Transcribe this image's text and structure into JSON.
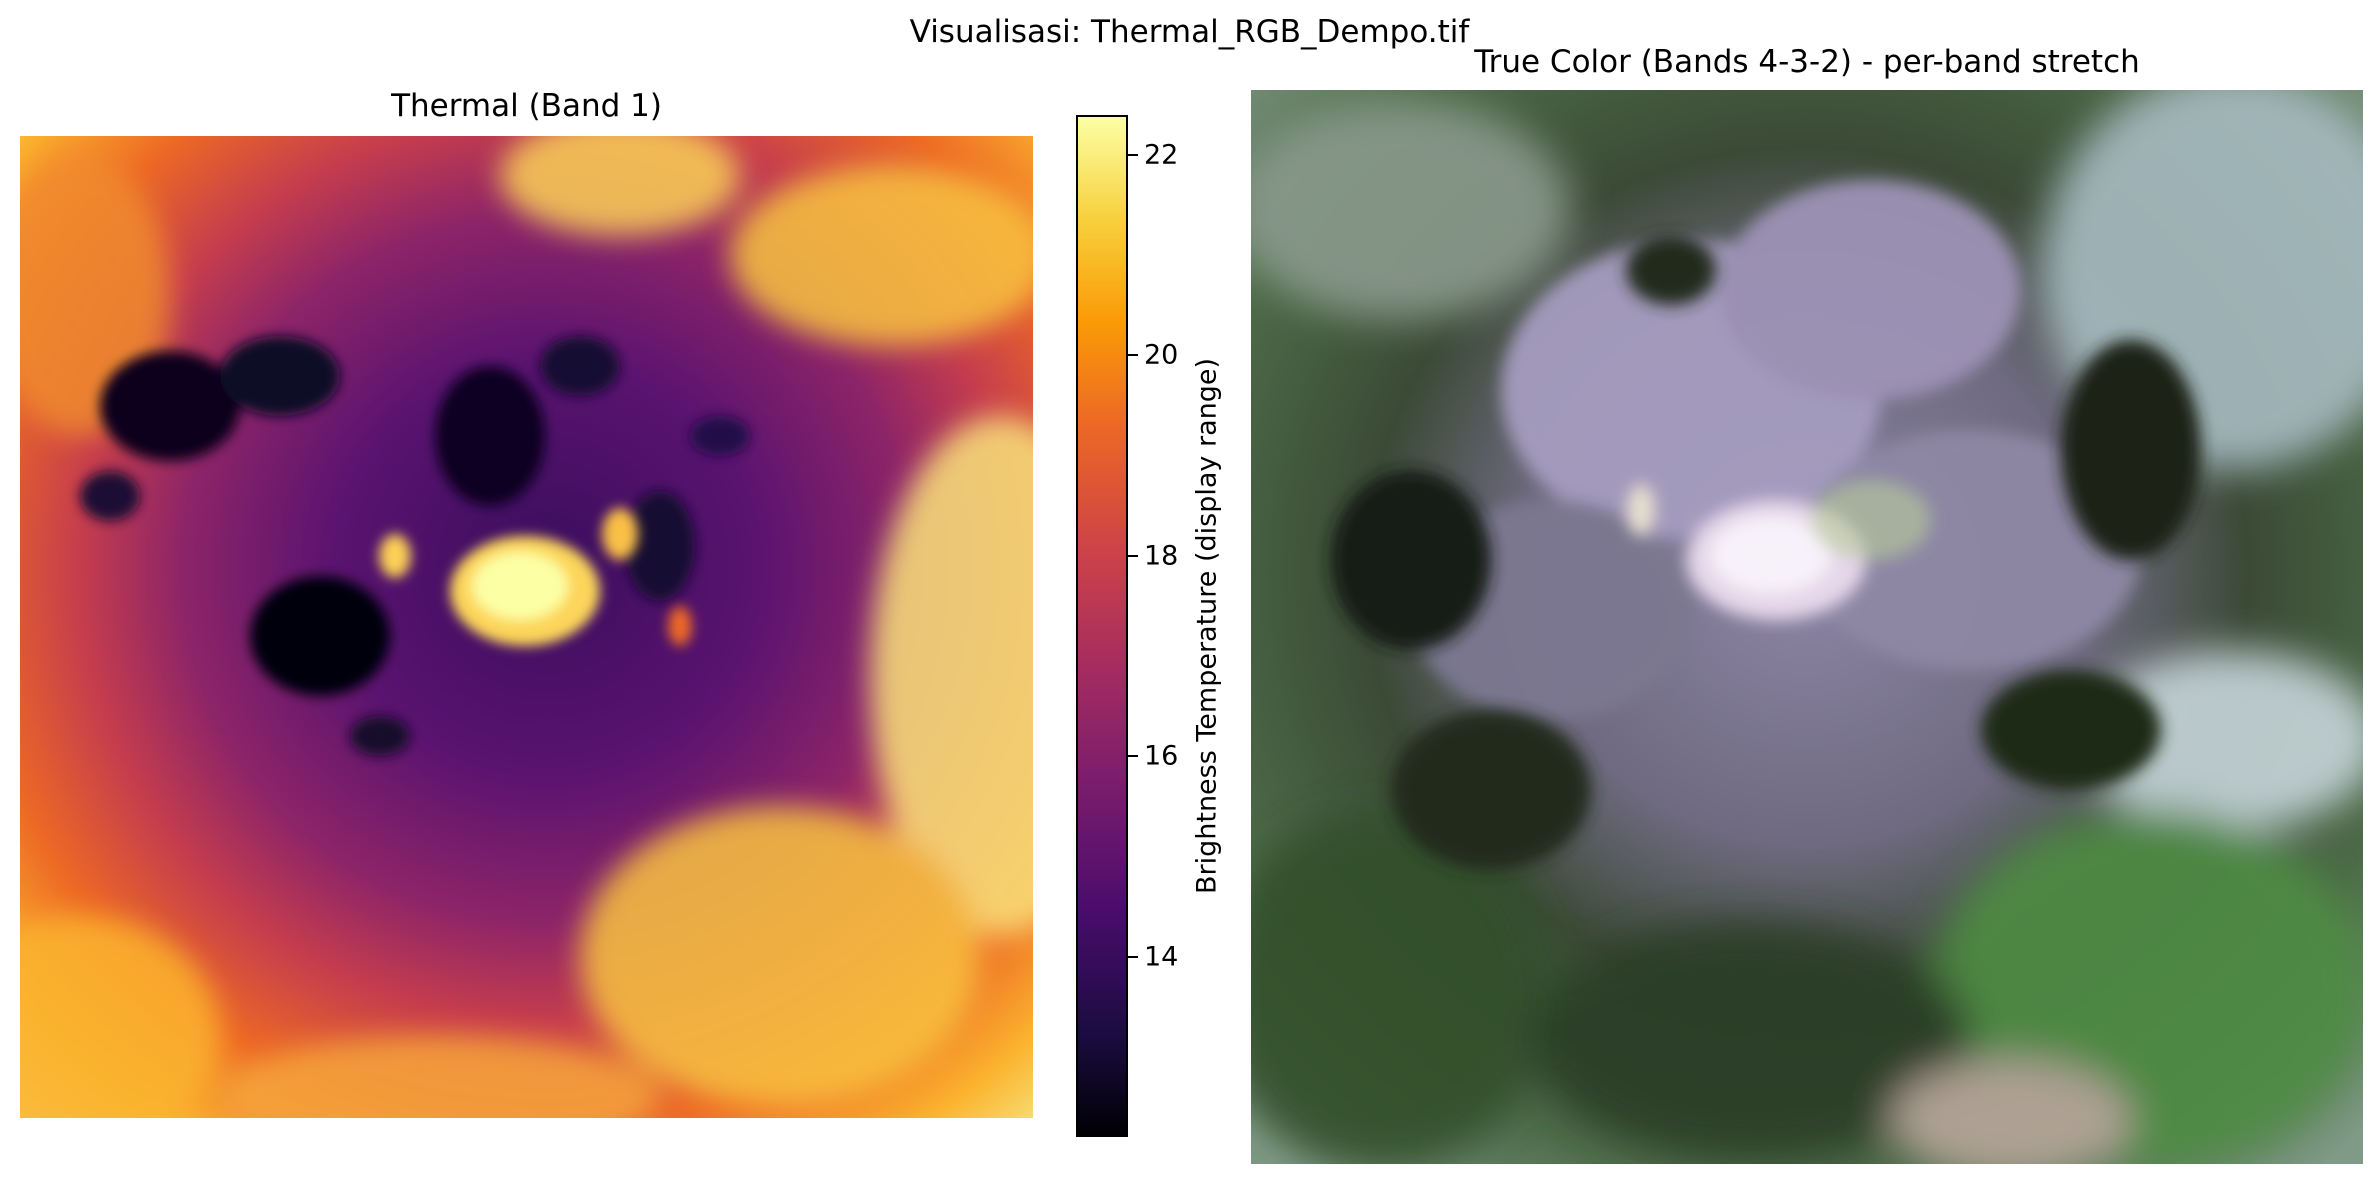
{
  "figure": {
    "suptitle": "Visualisasi: Thermal_RGB_Dempo.tif"
  },
  "thermal_panel": {
    "title": "Thermal (Band 1)",
    "colormap": "inferno",
    "colors": {
      "cold": "#000004",
      "mid": "#781c6d",
      "warm": "#ed6925",
      "hot": "#fcffa4"
    }
  },
  "colorbar": {
    "label": "Brightness Temperature (display range)",
    "min": 12.2,
    "max": 22.4,
    "ticks": [
      {
        "value": 14,
        "label": "14"
      },
      {
        "value": 16,
        "label": "16"
      },
      {
        "value": 18,
        "label": "18"
      },
      {
        "value": 20,
        "label": "20"
      },
      {
        "value": 22,
        "label": "22"
      }
    ]
  },
  "rgb_panel": {
    "title": "True Color (Bands 4-3-2) - per-band stretch",
    "colors": {
      "vegetation": "#3f6b3a",
      "highland": "#9d93b6",
      "shadow": "#1b2418",
      "crater": "#f4eef7",
      "haze": "#b9c9cf"
    }
  }
}
